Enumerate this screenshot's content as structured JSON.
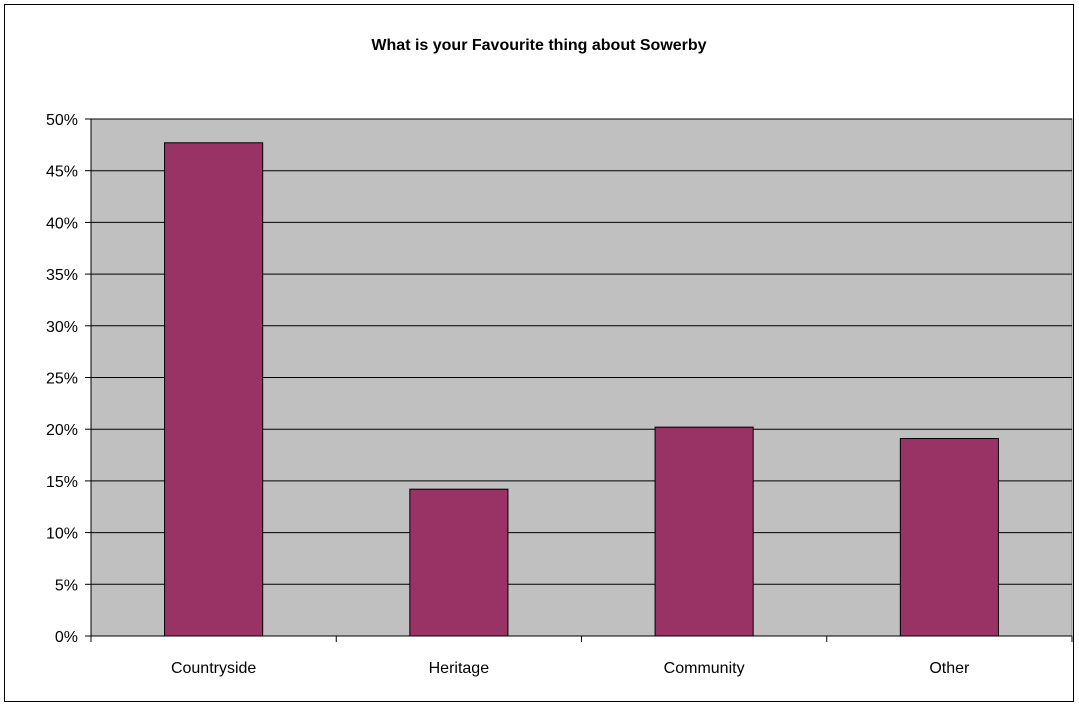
{
  "chart_data": {
    "type": "bar",
    "title": "What is your Favourite thing about Sowerby",
    "xlabel": "",
    "ylabel": "",
    "categories": [
      "Countryside",
      "Heritage",
      "Community",
      "Other"
    ],
    "values": [
      47.7,
      14.2,
      20.2,
      19.1
    ],
    "unit": "%",
    "ylim": [
      0,
      50
    ],
    "yticks": [
      "0%",
      "5%",
      "10%",
      "15%",
      "20%",
      "25%",
      "30%",
      "35%",
      "40%",
      "45%",
      "50%"
    ],
    "grid": true,
    "legend": "none",
    "colors": {
      "bar": "#993366",
      "plot_background": "#C0C0C0",
      "gridline": "#000000"
    }
  }
}
